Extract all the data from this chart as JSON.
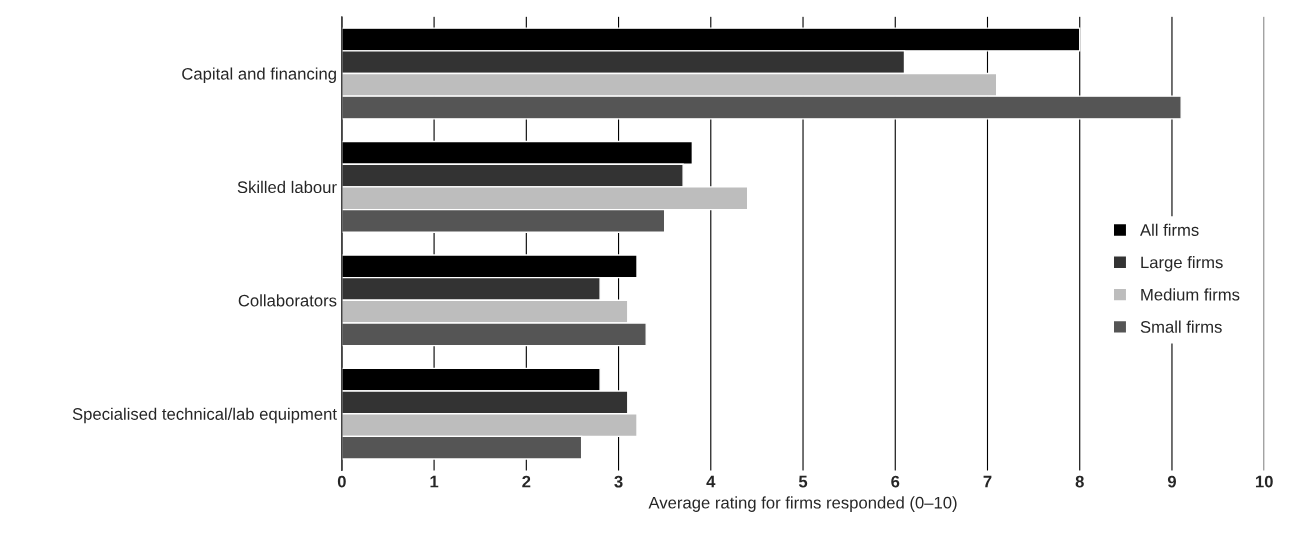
{
  "chart_data": {
    "type": "bar",
    "orientation": "horizontal",
    "categories": [
      "Capital and financing",
      "Skilled labour",
      "Collaborators",
      "Specialised technical/lab equipment"
    ],
    "series": [
      {
        "name": "All firms",
        "color": "#000000",
        "values": [
          8.0,
          3.8,
          3.2,
          2.8
        ]
      },
      {
        "name": "Large firms",
        "color": "#333333",
        "values": [
          6.1,
          3.7,
          2.8,
          3.1
        ]
      },
      {
        "name": "Medium firms",
        "color": "#bdbdbd",
        "values": [
          7.1,
          4.4,
          3.1,
          3.2
        ]
      },
      {
        "name": "Small firms",
        "color": "#555555",
        "values": [
          9.1,
          3.5,
          3.3,
          2.6
        ]
      }
    ],
    "xlabel": "Average rating for firms responded (0–10)",
    "xlim": [
      0,
      10
    ],
    "xticks": [
      0,
      1,
      2,
      3,
      4,
      5,
      6,
      7,
      8,
      9,
      10
    ],
    "grid": "x",
    "legend": "right"
  }
}
